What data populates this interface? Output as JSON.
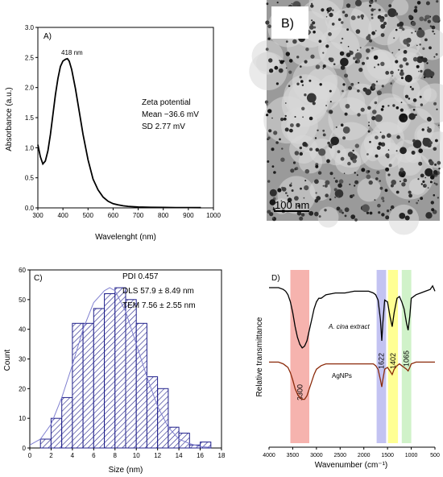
{
  "chart_data": [
    {
      "panel": "A)",
      "type": "line",
      "xlabel": "Wavelenght (nm)",
      "ylabel": "Absorbance (a.u.)",
      "xlim": [
        300,
        1000
      ],
      "ylim": [
        0,
        3.0
      ],
      "xticks": [
        "300",
        "400",
        "500",
        "600",
        "700",
        "800",
        "900",
        "1000"
      ],
      "yticks": [
        "0.0",
        "0.5",
        "1.0",
        "1.5",
        "2.0",
        "2.5",
        "3.0"
      ],
      "peak_label": "418 nm",
      "notes": [
        "Zeta potential",
        "Mean −36.6 mV",
        "SD   2.77 mV"
      ],
      "x": [
        300,
        310,
        320,
        330,
        340,
        350,
        360,
        370,
        380,
        390,
        400,
        410,
        418,
        425,
        435,
        450,
        465,
        480,
        500,
        520,
        540,
        560,
        580,
        600,
        620,
        640,
        660,
        700,
        750,
        800,
        850,
        900,
        950
      ],
      "y": [
        1.05,
        0.85,
        0.73,
        0.78,
        0.95,
        1.22,
        1.55,
        1.88,
        2.15,
        2.35,
        2.44,
        2.47,
        2.48,
        2.44,
        2.3,
        1.98,
        1.6,
        1.22,
        0.8,
        0.48,
        0.3,
        0.18,
        0.11,
        0.07,
        0.05,
        0.035,
        0.025,
        0.015,
        0.01,
        0.008,
        0.006,
        0.005,
        0.004
      ],
      "color": "#000000"
    },
    {
      "panel": "B)",
      "type": "image",
      "scale_label": "100 nm"
    },
    {
      "panel": "C)",
      "type": "bar",
      "xlabel": "Size (nm)",
      "ylabel": "Count",
      "xlim": [
        0,
        18
      ],
      "ylim": [
        0,
        60
      ],
      "xticks": [
        "0",
        "2",
        "4",
        "6",
        "8",
        "10",
        "12",
        "14",
        "16",
        "18"
      ],
      "yticks": [
        "0",
        "10",
        "20",
        "30",
        "40",
        "50",
        "60"
      ],
      "bin_width": 1,
      "bin_starts": [
        1,
        2,
        3,
        4,
        5,
        6,
        7,
        8,
        9,
        10,
        11,
        12,
        13,
        14,
        15,
        16
      ],
      "values": [
        3,
        10,
        17,
        42,
        42,
        47,
        52,
        54,
        50,
        42,
        24,
        20,
        7,
        5,
        1,
        2
      ],
      "fit_x": [
        0,
        1,
        2,
        3,
        4,
        5,
        6,
        7,
        7.5,
        8,
        9,
        10,
        11,
        12,
        13,
        14,
        15,
        16,
        17
      ],
      "fit_y": [
        1,
        3,
        8,
        17,
        28,
        40,
        49,
        53,
        54,
        53,
        46,
        35,
        24,
        14,
        7,
        3,
        1.5,
        0.5,
        0.2
      ],
      "notes": [
        "PDI  0.457",
        "DLS 57.9 ± 8.49 nm",
        "TEM 7.56 ± 2.55 nm"
      ],
      "bar_color": "#1f1f8a",
      "fit_color": "#8080d0"
    },
    {
      "panel": "D)",
      "type": "line",
      "xlabel": "Wavenumber (cm⁻¹)",
      "ylabel": "Relative transmittance",
      "xlim": [
        4000,
        500
      ],
      "xticks": [
        "4000",
        "3500",
        "3000",
        "2500",
        "2000",
        "1500",
        "1000",
        "500"
      ],
      "bands": [
        {
          "label": "3300",
          "from": 3550,
          "to": 3150,
          "color": "#f4a6a0"
        },
        {
          "label": "1622",
          "from": 1730,
          "to": 1530,
          "color": "#b8b8f0"
        },
        {
          "label": "1402",
          "from": 1490,
          "to": 1280,
          "color": "#ffff80"
        },
        {
          "label": "1065",
          "from": 1200,
          "to": 1000,
          "color": "#c8f0c0"
        }
      ],
      "series": [
        {
          "name": "A. cina extract",
          "color": "#000000",
          "x": [
            4000,
            3800,
            3700,
            3650,
            3600,
            3550,
            3500,
            3450,
            3400,
            3350,
            3300,
            3250,
            3200,
            3150,
            3100,
            3050,
            3000,
            2950,
            2900,
            2850,
            2800,
            2600,
            2400,
            2200,
            2000,
            1900,
            1800,
            1750,
            1700,
            1650,
            1622,
            1600,
            1560,
            1500,
            1450,
            1402,
            1360,
            1300,
            1250,
            1200,
            1150,
            1100,
            1065,
            1030,
            1000,
            900,
            800,
            700,
            600,
            550,
            500
          ],
          "y": [
            0.9,
            0.9,
            0.89,
            0.88,
            0.86,
            0.82,
            0.76,
            0.68,
            0.62,
            0.58,
            0.56,
            0.57,
            0.6,
            0.66,
            0.72,
            0.78,
            0.82,
            0.84,
            0.84,
            0.85,
            0.86,
            0.87,
            0.87,
            0.88,
            0.88,
            0.88,
            0.87,
            0.86,
            0.83,
            0.72,
            0.6,
            0.7,
            0.83,
            0.82,
            0.74,
            0.68,
            0.76,
            0.84,
            0.85,
            0.82,
            0.78,
            0.7,
            0.66,
            0.74,
            0.84,
            0.86,
            0.87,
            0.88,
            0.89,
            0.91,
            0.88
          ]
        },
        {
          "name": "AgNPs",
          "color": "#8b2a0a",
          "x": [
            4000,
            3800,
            3700,
            3650,
            3600,
            3550,
            3500,
            3450,
            3400,
            3350,
            3300,
            3250,
            3200,
            3150,
            3100,
            3050,
            3000,
            2900,
            2800,
            2600,
            2400,
            2200,
            2000,
            1900,
            1800,
            1750,
            1700,
            1650,
            1622,
            1600,
            1560,
            1500,
            1450,
            1402,
            1360,
            1300,
            1250,
            1200,
            1150,
            1100,
            1065,
            1030,
            1000,
            900,
            800,
            700,
            600,
            500
          ],
          "y": [
            0.48,
            0.48,
            0.47,
            0.46,
            0.45,
            0.42,
            0.38,
            0.33,
            0.3,
            0.28,
            0.27,
            0.27,
            0.29,
            0.33,
            0.37,
            0.41,
            0.44,
            0.46,
            0.47,
            0.47,
            0.47,
            0.47,
            0.47,
            0.47,
            0.47,
            0.46,
            0.44,
            0.38,
            0.34,
            0.38,
            0.44,
            0.45,
            0.43,
            0.41,
            0.44,
            0.46,
            0.47,
            0.46,
            0.45,
            0.44,
            0.43,
            0.45,
            0.47,
            0.48,
            0.48,
            0.48,
            0.48,
            0.48
          ]
        }
      ]
    }
  ]
}
